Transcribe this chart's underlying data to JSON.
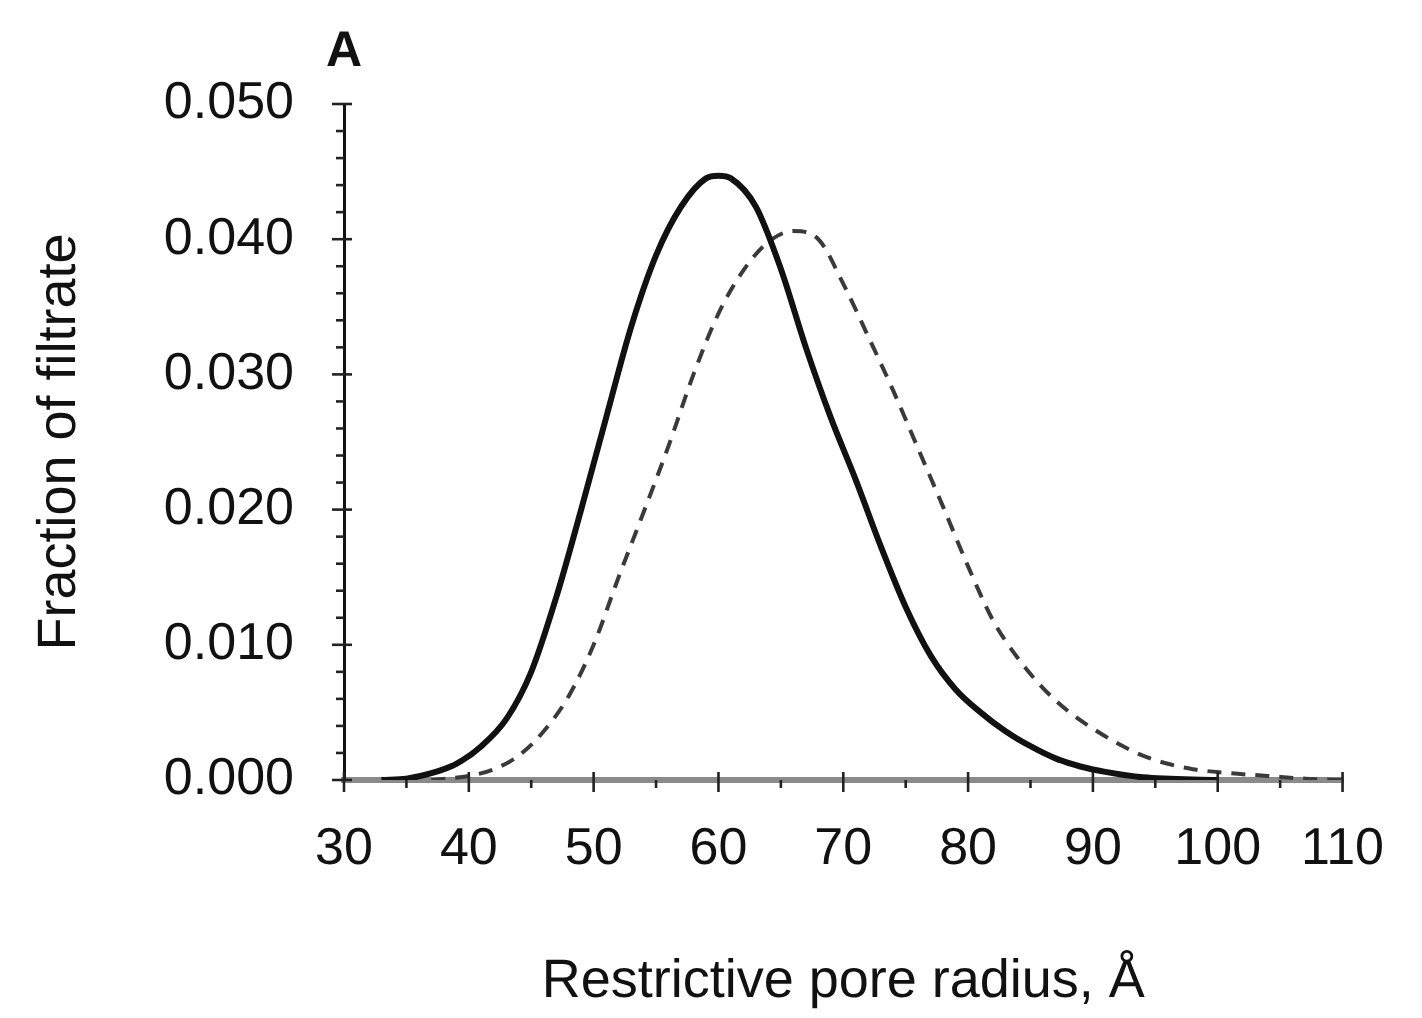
{
  "chart_data": {
    "type": "line",
    "title": "A",
    "xlabel": "Restrictive pore radius, Å",
    "ylabel": "Fraction of filtrate",
    "xlim": [
      30,
      110
    ],
    "xticks": [
      30,
      {
        "value": 35,
        "label": null
      },
      40,
      {
        "value": 45,
        "label": null
      },
      50,
      {
        "value": 55,
        "label": null
      },
      60,
      {
        "value": 65,
        "label": null
      },
      70,
      {
        "value": 75,
        "label": null
      },
      80,
      {
        "value": 85,
        "label": null
      },
      90,
      {
        "value": 95,
        "label": null
      },
      100,
      {
        "value": 105,
        "label": null
      },
      110
    ],
    "ylim": [
      0,
      0.05
    ],
    "yticks": [
      {
        "value": 0,
        "label": "0.000"
      },
      {
        "value": 0.002,
        "label": null
      },
      {
        "value": 0.004,
        "label": null
      },
      {
        "value": 0.006,
        "label": null
      },
      {
        "value": 0.008,
        "label": null
      },
      {
        "value": 0.01,
        "label": "0.010"
      },
      {
        "value": 0.012,
        "label": null
      },
      {
        "value": 0.014,
        "label": null
      },
      {
        "value": 0.016,
        "label": null
      },
      {
        "value": 0.018,
        "label": null
      },
      {
        "value": 0.02,
        "label": "0.020"
      },
      {
        "value": 0.022,
        "label": null
      },
      {
        "value": 0.024,
        "label": null
      },
      {
        "value": 0.026,
        "label": null
      },
      {
        "value": 0.028,
        "label": null
      },
      {
        "value": 0.03,
        "label": "0.030"
      },
      {
        "value": 0.032,
        "label": null
      },
      {
        "value": 0.034,
        "label": null
      },
      {
        "value": 0.036,
        "label": null
      },
      {
        "value": 0.038,
        "label": null
      },
      {
        "value": 0.04,
        "label": "0.040"
      },
      {
        "value": 0.042,
        "label": null
      },
      {
        "value": 0.044,
        "label": null
      },
      {
        "value": 0.046,
        "label": null
      },
      {
        "value": 0.048,
        "label": null
      },
      {
        "value": 0.05,
        "label": "0.050"
      }
    ],
    "marker": "none",
    "series": [
      {
        "color": "#111111",
        "line_style": "solid",
        "x": [
          33,
          35,
          37,
          39,
          41,
          43,
          45,
          47,
          49,
          51,
          53,
          55,
          57,
          59,
          60,
          61,
          63,
          65,
          67,
          69,
          71,
          73,
          75,
          77,
          79,
          81,
          83,
          85,
          87,
          89,
          91,
          94,
          100
        ],
        "values": [
          0,
          0.0001,
          0.0005,
          0.0012,
          0.0025,
          0.0045,
          0.008,
          0.0135,
          0.02,
          0.0268,
          0.0335,
          0.0388,
          0.0424,
          0.0445,
          0.0447,
          0.0445,
          0.0424,
          0.0378,
          0.032,
          0.0268,
          0.0222,
          0.0173,
          0.0128,
          0.0092,
          0.0067,
          0.005,
          0.0036,
          0.0025,
          0.0016,
          0.001,
          0.0006,
          0.0002,
          0
        ]
      },
      {
        "color": "#3a3a3a",
        "line_style": "dashed",
        "x": [
          37,
          40,
          42,
          44,
          46,
          48,
          50,
          52,
          54,
          56,
          58,
          60,
          62,
          64,
          66,
          68,
          70,
          72,
          74,
          76,
          78,
          80,
          82,
          84,
          86,
          88,
          90,
          92,
          94,
          96,
          98,
          101,
          104,
          107,
          110
        ],
        "values": [
          0,
          0.0003,
          0.0008,
          0.0018,
          0.0036,
          0.0062,
          0.01,
          0.015,
          0.0198,
          0.0247,
          0.03,
          0.0345,
          0.0377,
          0.0398,
          0.0406,
          0.04,
          0.0367,
          0.0328,
          0.0288,
          0.0245,
          0.0202,
          0.0158,
          0.0118,
          0.009,
          0.0068,
          0.0051,
          0.0038,
          0.0027,
          0.0018,
          0.0012,
          0.0008,
          0.0005,
          0.0003,
          0.0001,
          0
        ]
      }
    ]
  }
}
